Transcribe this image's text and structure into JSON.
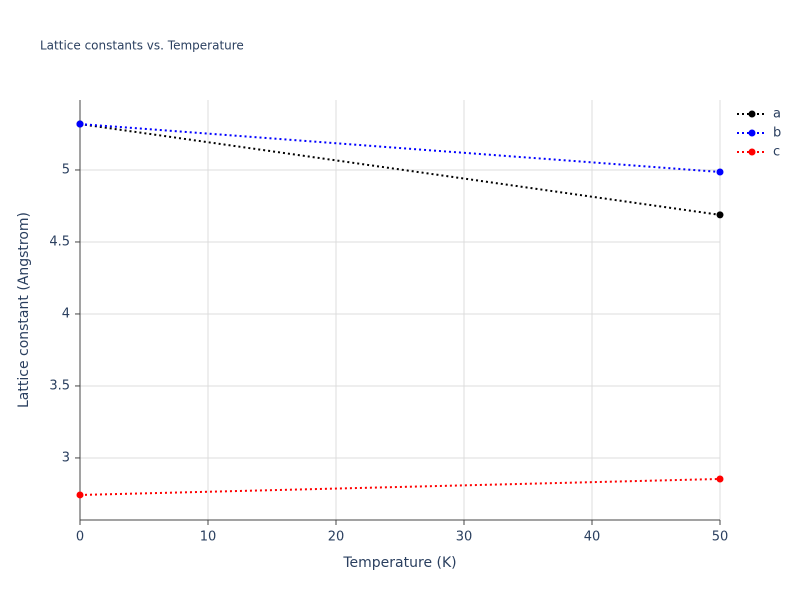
{
  "chart_data": {
    "type": "line",
    "title": "Lattice constants vs. Temperature",
    "x_label": "Temperature (K)",
    "y_label": "Lattice constant (Angstrom)",
    "x": [
      0,
      50
    ],
    "series": [
      {
        "name": "a",
        "color": "#000000",
        "values": [
          5.319,
          4.688
        ]
      },
      {
        "name": "b",
        "color": "#0000ff",
        "values": [
          5.319,
          4.986
        ]
      },
      {
        "name": "c",
        "color": "#ff0000",
        "values": [
          2.743,
          2.854
        ]
      }
    ],
    "xlim": [
      0,
      50
    ],
    "xticks": [
      0,
      10,
      20,
      30,
      40,
      50
    ],
    "ylim": [
      2.569,
      5.486
    ],
    "yticks": [
      3,
      3.5,
      4,
      4.5,
      5
    ],
    "grid": true,
    "legend": "right",
    "line_style": "dotted"
  }
}
